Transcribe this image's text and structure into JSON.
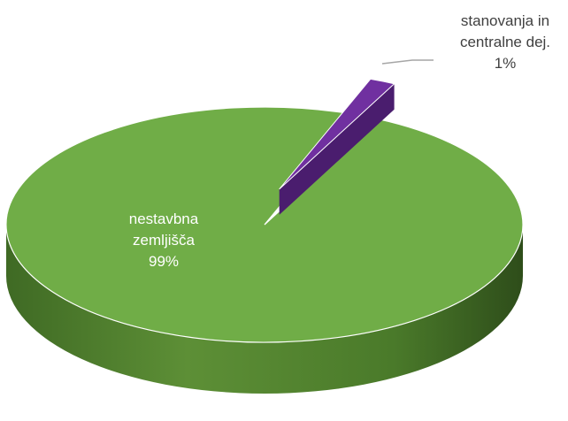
{
  "chart_data": {
    "type": "pie",
    "style": "3d-exploded",
    "title": "",
    "slices": [
      {
        "name": "nestavbna zemljišča",
        "label_lines": [
          "nestavbna",
          "zemljišča"
        ],
        "percent_label": "99%",
        "value": 99,
        "color": "#70ad47",
        "color_side": "#4b7a2c"
      },
      {
        "name": "stanovanja in centralne dej.",
        "label_lines": [
          "stanovanja in",
          "centralne dej."
        ],
        "percent_label": "1%",
        "value": 1,
        "color": "#7030a0",
        "color_side": "#4a1d6e"
      }
    ],
    "legend": "none"
  }
}
